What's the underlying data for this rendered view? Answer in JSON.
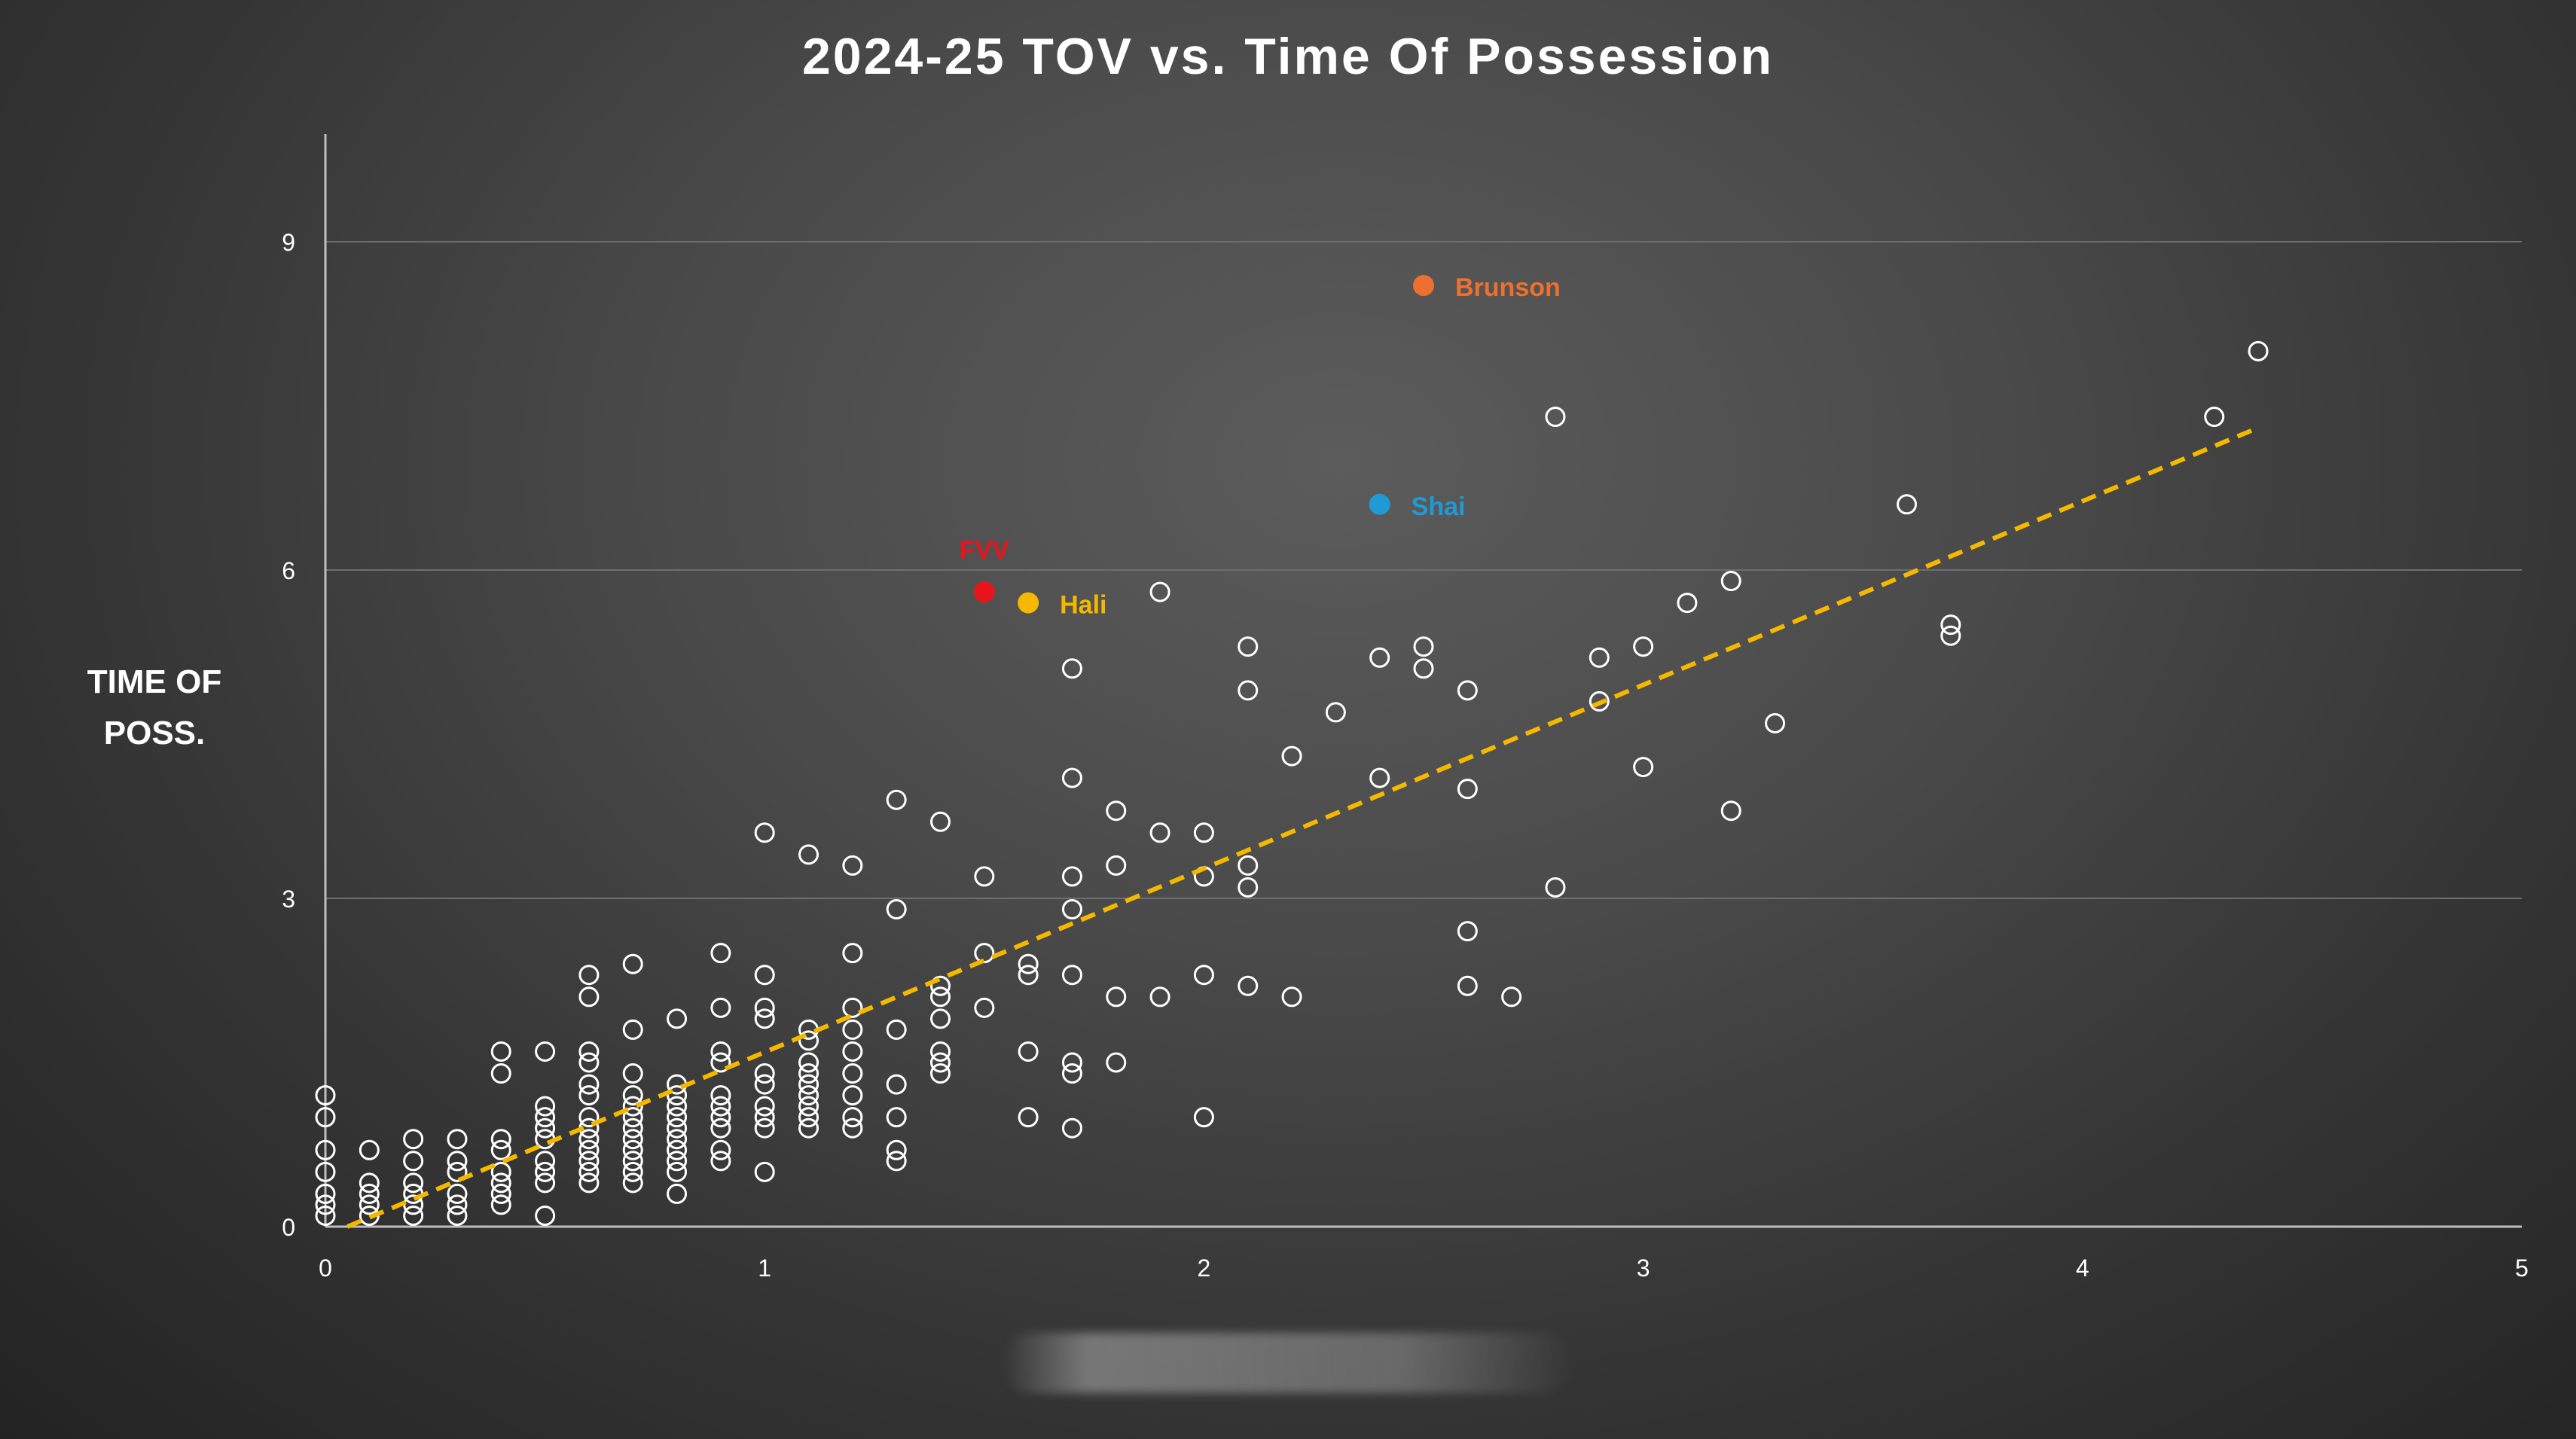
{
  "chart_data": {
    "type": "scatter",
    "title": "2024-25 TOV vs. Time Of Possession",
    "xlabel": "",
    "ylabel_lines": [
      "TIME OF",
      "POSS."
    ],
    "xlim": [
      0,
      5
    ],
    "ylim": [
      0,
      10
    ],
    "x_ticks": [
      0,
      1,
      2,
      3,
      4,
      5
    ],
    "y_ticks": [
      0,
      3,
      6,
      9
    ],
    "grid": "horizontal",
    "colors": {
      "axis": "#bfbfbf",
      "grid": "#6e6e6e",
      "tick_label": "#ffffff",
      "point_stroke": "#ffffff",
      "trendline": "#f5b800"
    },
    "trendline": {
      "style": "dashed",
      "from": [
        0.05,
        0.0
      ],
      "to": [
        4.4,
        7.3
      ]
    },
    "highlighted": [
      {
        "label": "Brunson",
        "x": 2.5,
        "y": 8.6,
        "color": "#ed7030"
      },
      {
        "label": "Shai",
        "x": 2.4,
        "y": 6.6,
        "color": "#1e9ad6"
      },
      {
        "label": "FVV",
        "x": 1.5,
        "y": 5.8,
        "color": "#e8141c"
      },
      {
        "label": "Hali",
        "x": 1.6,
        "y": 5.7,
        "color": "#f5b800"
      }
    ],
    "points": [
      [
        0,
        1.2
      ],
      [
        0,
        1.0
      ],
      [
        0,
        0.7
      ],
      [
        0,
        0.5
      ],
      [
        0,
        0.3
      ],
      [
        0,
        0.2
      ],
      [
        0,
        0.1
      ],
      [
        0.1,
        0.7
      ],
      [
        0.1,
        0.4
      ],
      [
        0.1,
        0.3
      ],
      [
        0.1,
        0.2
      ],
      [
        0.1,
        0.1
      ],
      [
        0.2,
        0.8
      ],
      [
        0.2,
        0.6
      ],
      [
        0.2,
        0.4
      ],
      [
        0.2,
        0.3
      ],
      [
        0.2,
        0.2
      ],
      [
        0.2,
        0.1
      ],
      [
        0.3,
        0.8
      ],
      [
        0.3,
        0.6
      ],
      [
        0.3,
        0.5
      ],
      [
        0.3,
        0.3
      ],
      [
        0.3,
        0.2
      ],
      [
        0.3,
        0.1
      ],
      [
        0.4,
        1.6
      ],
      [
        0.4,
        1.4
      ],
      [
        0.4,
        0.8
      ],
      [
        0.4,
        0.7
      ],
      [
        0.4,
        0.5
      ],
      [
        0.4,
        0.4
      ],
      [
        0.4,
        0.3
      ],
      [
        0.4,
        0.2
      ],
      [
        0.5,
        1.6
      ],
      [
        0.5,
        1.1
      ],
      [
        0.5,
        1.0
      ],
      [
        0.5,
        0.9
      ],
      [
        0.5,
        0.8
      ],
      [
        0.5,
        0.6
      ],
      [
        0.5,
        0.5
      ],
      [
        0.5,
        0.4
      ],
      [
        0.5,
        0.1
      ],
      [
        0.6,
        2.3
      ],
      [
        0.6,
        2.1
      ],
      [
        0.6,
        1.6
      ],
      [
        0.6,
        1.5
      ],
      [
        0.6,
        1.3
      ],
      [
        0.6,
        1.2
      ],
      [
        0.6,
        1.0
      ],
      [
        0.6,
        0.9
      ],
      [
        0.6,
        0.8
      ],
      [
        0.6,
        0.7
      ],
      [
        0.6,
        0.6
      ],
      [
        0.6,
        0.5
      ],
      [
        0.6,
        0.4
      ],
      [
        0.7,
        2.4
      ],
      [
        0.7,
        1.8
      ],
      [
        0.7,
        1.4
      ],
      [
        0.7,
        1.2
      ],
      [
        0.7,
        1.1
      ],
      [
        0.7,
        1.0
      ],
      [
        0.7,
        0.9
      ],
      [
        0.7,
        0.8
      ],
      [
        0.7,
        0.7
      ],
      [
        0.7,
        0.6
      ],
      [
        0.7,
        0.5
      ],
      [
        0.7,
        0.4
      ],
      [
        0.8,
        1.9
      ],
      [
        0.8,
        1.3
      ],
      [
        0.8,
        1.2
      ],
      [
        0.8,
        1.1
      ],
      [
        0.8,
        1.0
      ],
      [
        0.8,
        0.9
      ],
      [
        0.8,
        0.8
      ],
      [
        0.8,
        0.7
      ],
      [
        0.8,
        0.6
      ],
      [
        0.8,
        0.5
      ],
      [
        0.8,
        0.3
      ],
      [
        0.9,
        2.5
      ],
      [
        0.9,
        2.0
      ],
      [
        0.9,
        1.6
      ],
      [
        0.9,
        1.5
      ],
      [
        0.9,
        1.2
      ],
      [
        0.9,
        1.1
      ],
      [
        0.9,
        1.0
      ],
      [
        0.9,
        0.9
      ],
      [
        0.9,
        0.7
      ],
      [
        0.9,
        0.6
      ],
      [
        1.0,
        3.6
      ],
      [
        1.0,
        2.3
      ],
      [
        1.0,
        2.0
      ],
      [
        1.0,
        1.9
      ],
      [
        1.0,
        1.4
      ],
      [
        1.0,
        1.3
      ],
      [
        1.0,
        1.1
      ],
      [
        1.0,
        1.0
      ],
      [
        1.0,
        0.9
      ],
      [
        1.0,
        0.5
      ],
      [
        1.1,
        3.4
      ],
      [
        1.1,
        1.8
      ],
      [
        1.1,
        1.7
      ],
      [
        1.1,
        1.5
      ],
      [
        1.1,
        1.4
      ],
      [
        1.1,
        1.3
      ],
      [
        1.1,
        1.2
      ],
      [
        1.1,
        1.1
      ],
      [
        1.1,
        1.0
      ],
      [
        1.1,
        0.9
      ],
      [
        1.2,
        3.3
      ],
      [
        1.2,
        2.5
      ],
      [
        1.2,
        2.0
      ],
      [
        1.2,
        1.8
      ],
      [
        1.2,
        1.6
      ],
      [
        1.2,
        1.4
      ],
      [
        1.2,
        1.2
      ],
      [
        1.2,
        1.0
      ],
      [
        1.2,
        0.9
      ],
      [
        1.3,
        3.9
      ],
      [
        1.3,
        2.9
      ],
      [
        1.3,
        1.8
      ],
      [
        1.3,
        1.3
      ],
      [
        1.3,
        1.0
      ],
      [
        1.3,
        0.7
      ],
      [
        1.3,
        0.6
      ],
      [
        1.4,
        3.7
      ],
      [
        1.4,
        2.2
      ],
      [
        1.4,
        2.1
      ],
      [
        1.4,
        1.9
      ],
      [
        1.4,
        1.6
      ],
      [
        1.4,
        1.5
      ],
      [
        1.4,
        1.4
      ],
      [
        1.5,
        3.2
      ],
      [
        1.5,
        2.5
      ],
      [
        1.5,
        2.0
      ],
      [
        1.6,
        2.4
      ],
      [
        1.6,
        2.3
      ],
      [
        1.6,
        1.6
      ],
      [
        1.6,
        1.0
      ],
      [
        1.7,
        5.1
      ],
      [
        1.7,
        4.1
      ],
      [
        1.7,
        3.2
      ],
      [
        1.7,
        2.9
      ],
      [
        1.7,
        2.3
      ],
      [
        1.7,
        1.5
      ],
      [
        1.7,
        1.4
      ],
      [
        1.7,
        0.9
      ],
      [
        1.8,
        3.8
      ],
      [
        1.8,
        3.3
      ],
      [
        1.8,
        2.1
      ],
      [
        1.8,
        1.5
      ],
      [
        1.9,
        5.8
      ],
      [
        1.9,
        3.6
      ],
      [
        1.9,
        2.1
      ],
      [
        2.0,
        3.6
      ],
      [
        2.0,
        3.2
      ],
      [
        2.0,
        2.3
      ],
      [
        2.0,
        1.0
      ],
      [
        2.1,
        5.3
      ],
      [
        2.1,
        4.9
      ],
      [
        2.1,
        3.3
      ],
      [
        2.1,
        3.1
      ],
      [
        2.1,
        2.2
      ],
      [
        2.2,
        4.3
      ],
      [
        2.2,
        2.1
      ],
      [
        2.3,
        4.7
      ],
      [
        2.4,
        5.2
      ],
      [
        2.4,
        4.1
      ],
      [
        2.5,
        5.3
      ],
      [
        2.5,
        5.1
      ],
      [
        2.6,
        4.9
      ],
      [
        2.6,
        4.0
      ],
      [
        2.6,
        2.7
      ],
      [
        2.6,
        2.2
      ],
      [
        2.7,
        2.1
      ],
      [
        2.8,
        7.4
      ],
      [
        2.8,
        3.1
      ],
      [
        2.9,
        5.2
      ],
      [
        2.9,
        4.8
      ],
      [
        3.0,
        5.3
      ],
      [
        3.0,
        4.2
      ],
      [
        3.1,
        5.7
      ],
      [
        3.2,
        5.9
      ],
      [
        3.2,
        3.8
      ],
      [
        3.3,
        4.6
      ],
      [
        3.6,
        6.6
      ],
      [
        3.7,
        5.5
      ],
      [
        3.7,
        5.4
      ],
      [
        4.3,
        7.4
      ],
      [
        4.4,
        8.0
      ]
    ]
  }
}
